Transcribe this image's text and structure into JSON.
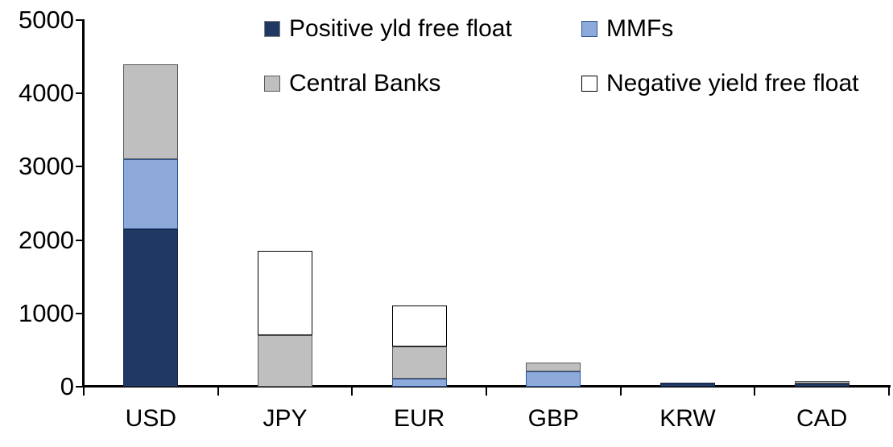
{
  "chart_data": {
    "type": "bar",
    "stacked": true,
    "title": "",
    "xlabel": "",
    "ylabel": "",
    "categories": [
      "USD",
      "JPY",
      "EUR",
      "GBP",
      "KRW",
      "CAD"
    ],
    "series": [
      {
        "name": "Positive yld free float",
        "fill": "#1F3864",
        "border": "#17263F",
        "values": [
          2150,
          0,
          0,
          0,
          50,
          40
        ]
      },
      {
        "name": "MMFs",
        "fill": "#8EAADB",
        "border": "#2F5597",
        "values": [
          950,
          0,
          110,
          210,
          0,
          0
        ]
      },
      {
        "name": "Central Banks",
        "fill": "#BFBFBF",
        "border": "#595959",
        "values": [
          1300,
          700,
          440,
          120,
          0,
          35
        ]
      },
      {
        "name": "Negative yield free float",
        "fill": "#FFFFFF",
        "border": "#000000",
        "values": [
          0,
          1150,
          560,
          0,
          0,
          0
        ]
      }
    ],
    "totals": [
      4400,
      1850,
      1110,
      330,
      50,
      75
    ],
    "y_axis": {
      "min": 0,
      "max": 5000,
      "step": 1000,
      "tick_labels": [
        "0",
        "1000",
        "2000",
        "3000",
        "4000",
        "5000"
      ]
    },
    "legend_position": "top",
    "legend_rows": [
      [
        "Positive yld free float",
        "MMFs"
      ],
      [
        "Central Banks",
        "Negative yield free float"
      ]
    ],
    "grid": false,
    "colors": {
      "axis": "#000000",
      "text": "#000000",
      "background": "#FFFFFF"
    }
  }
}
